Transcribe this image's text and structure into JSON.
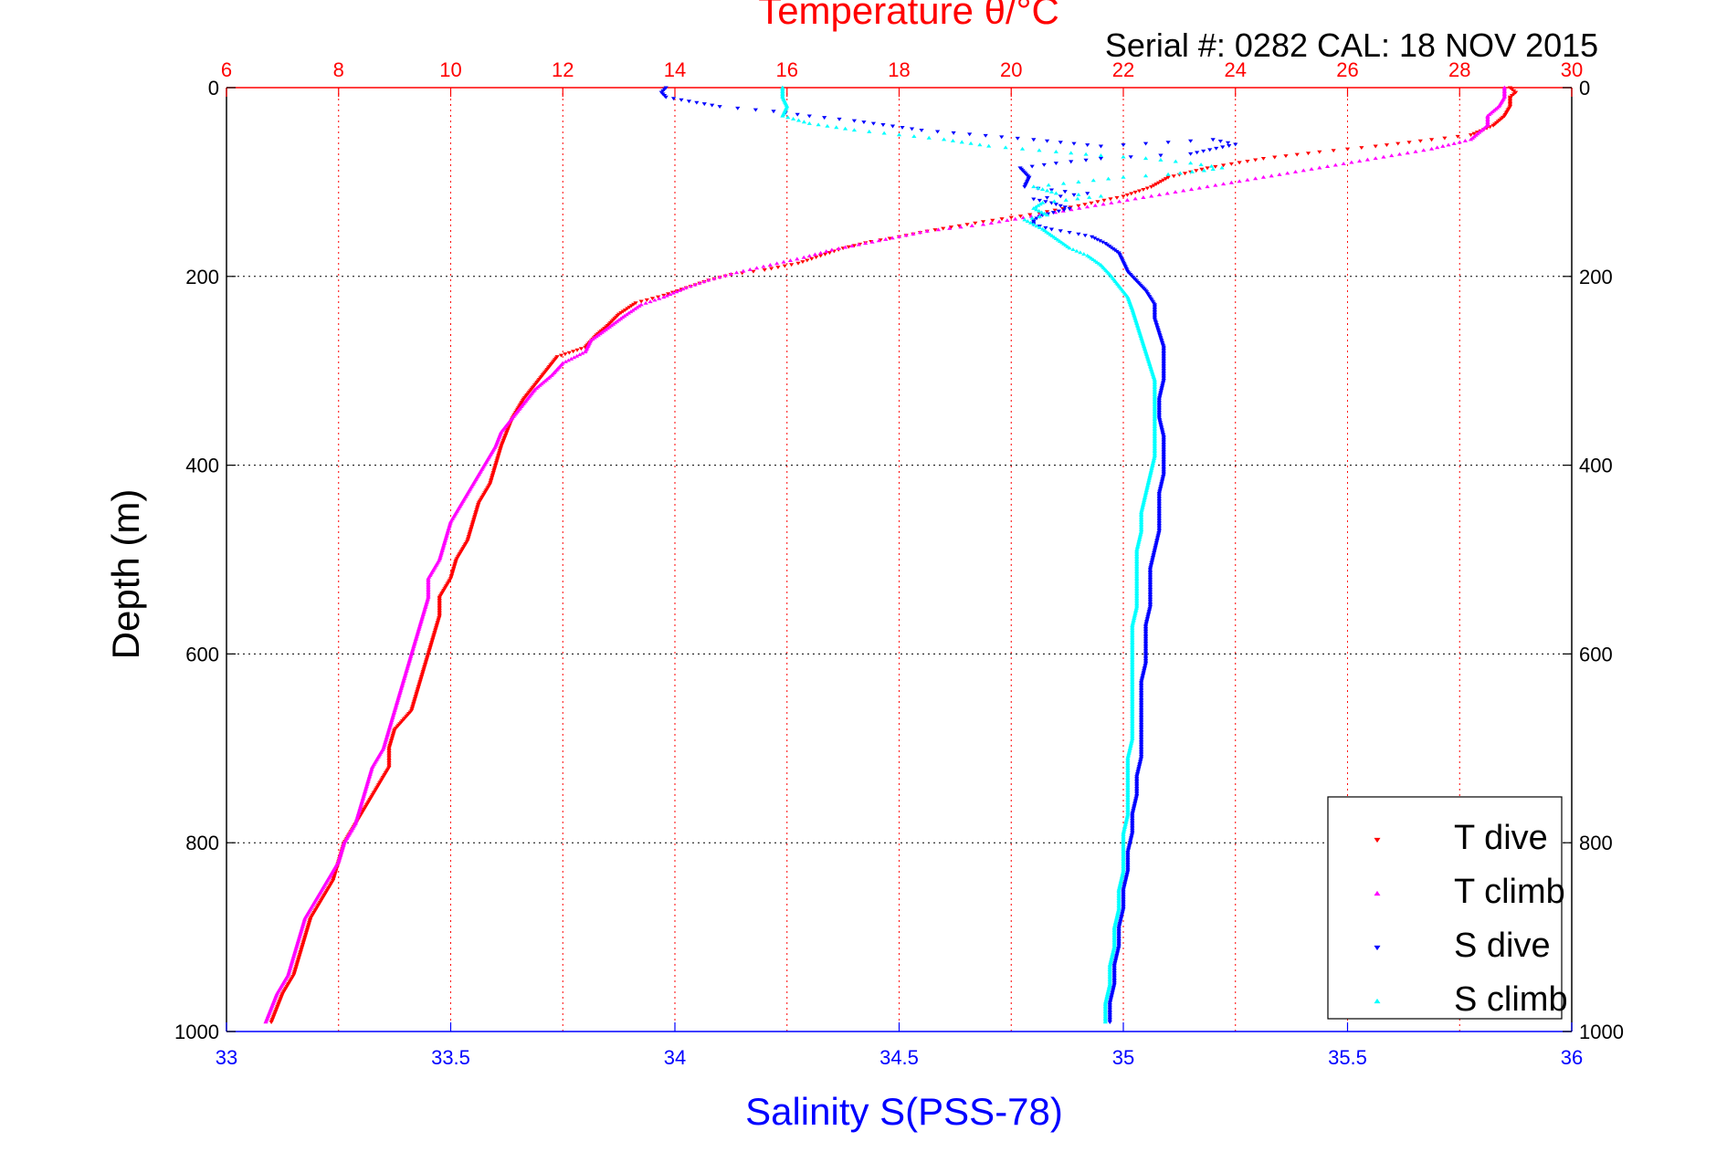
{
  "chart_data": {
    "type": "scatter",
    "title": "Temperature θ/°C",
    "subtitle": "Serial #: 0282  CAL: 18 NOV 2015",
    "xlabel_top": "Temperature θ/°C",
    "xlabel_bottom": "Salinity S(PSS-78)",
    "ylabel": "Depth (m)",
    "x_top": {
      "range": [
        6,
        30
      ],
      "ticks": [
        6,
        8,
        10,
        12,
        14,
        16,
        18,
        20,
        22,
        24,
        26,
        28,
        30
      ],
      "color": "#ff0000"
    },
    "x_bottom": {
      "range": [
        33,
        36
      ],
      "ticks": [
        "33",
        "33.5",
        "34",
        "34.5",
        "35",
        "35.5",
        "36"
      ],
      "color": "#0000ff"
    },
    "y": {
      "range": [
        0,
        1000
      ],
      "reversed": true,
      "ticks": [
        0,
        200,
        400,
        600,
        800,
        1000
      ]
    },
    "grid": true,
    "legend_position": "bottom-right",
    "series": [
      {
        "name": "T dive",
        "axis": "top",
        "color": "#ff0000",
        "marker": "triangle-down",
        "points": [
          [
            28.9,
            0
          ],
          [
            29.0,
            5
          ],
          [
            28.9,
            10
          ],
          [
            28.9,
            20
          ],
          [
            28.8,
            30
          ],
          [
            28.6,
            40
          ],
          [
            28.2,
            50
          ],
          [
            27.5,
            55
          ],
          [
            26.5,
            62
          ],
          [
            25.5,
            68
          ],
          [
            24.5,
            75
          ],
          [
            23.5,
            85
          ],
          [
            22.8,
            95
          ],
          [
            22.5,
            105
          ],
          [
            22.0,
            115
          ],
          [
            21.2,
            125
          ],
          [
            20.5,
            133
          ],
          [
            19.5,
            142
          ],
          [
            18.5,
            152
          ],
          [
            18.0,
            158
          ],
          [
            17.5,
            163
          ],
          [
            17.0,
            170
          ],
          [
            16.6,
            178
          ],
          [
            16.2,
            186
          ],
          [
            15.6,
            193
          ],
          [
            15.0,
            198
          ],
          [
            14.6,
            204
          ],
          [
            14.2,
            212
          ],
          [
            13.8,
            220
          ],
          [
            13.3,
            228
          ],
          [
            13.0,
            240
          ],
          [
            12.8,
            252
          ],
          [
            12.6,
            262
          ],
          [
            12.4,
            275
          ],
          [
            11.9,
            285
          ],
          [
            11.7,
            300
          ],
          [
            11.5,
            315
          ],
          [
            11.3,
            330
          ],
          [
            11.1,
            350
          ],
          [
            11.0,
            365
          ],
          [
            10.9,
            380
          ],
          [
            10.8,
            400
          ],
          [
            10.7,
            420
          ],
          [
            10.5,
            440
          ],
          [
            10.4,
            460
          ],
          [
            10.3,
            480
          ],
          [
            10.1,
            500
          ],
          [
            10.0,
            520
          ],
          [
            9.8,
            540
          ],
          [
            9.8,
            560
          ],
          [
            9.7,
            580
          ],
          [
            9.6,
            600
          ],
          [
            9.5,
            620
          ],
          [
            9.4,
            640
          ],
          [
            9.3,
            660
          ],
          [
            9.0,
            680
          ],
          [
            8.9,
            700
          ],
          [
            8.9,
            720
          ],
          [
            8.7,
            740
          ],
          [
            8.5,
            760
          ],
          [
            8.3,
            780
          ],
          [
            8.1,
            800
          ],
          [
            8.0,
            820
          ],
          [
            7.9,
            840
          ],
          [
            7.7,
            860
          ],
          [
            7.5,
            880
          ],
          [
            7.4,
            900
          ],
          [
            7.3,
            920
          ],
          [
            7.2,
            940
          ],
          [
            7.0,
            960
          ],
          [
            6.9,
            975
          ],
          [
            6.8,
            990
          ]
        ]
      },
      {
        "name": "T climb",
        "axis": "top",
        "color": "#ff00ff",
        "marker": "triangle-up",
        "points": [
          [
            28.8,
            0
          ],
          [
            28.8,
            10
          ],
          [
            28.7,
            20
          ],
          [
            28.5,
            30
          ],
          [
            28.5,
            40
          ],
          [
            28.2,
            55
          ],
          [
            27.5,
            65
          ],
          [
            26.5,
            75
          ],
          [
            25.5,
            85
          ],
          [
            24.5,
            95
          ],
          [
            23.5,
            105
          ],
          [
            22.5,
            115
          ],
          [
            21.5,
            125
          ],
          [
            20.5,
            135
          ],
          [
            19.5,
            145
          ],
          [
            18.5,
            152
          ],
          [
            18.0,
            158
          ],
          [
            17.4,
            165
          ],
          [
            16.8,
            172
          ],
          [
            16.3,
            180
          ],
          [
            15.7,
            188
          ],
          [
            15.1,
            196
          ],
          [
            14.6,
            204
          ],
          [
            14.2,
            212
          ],
          [
            13.8,
            222
          ],
          [
            13.4,
            230
          ],
          [
            13.1,
            242
          ],
          [
            12.8,
            255
          ],
          [
            12.5,
            268
          ],
          [
            12.4,
            280
          ],
          [
            12.0,
            292
          ],
          [
            11.8,
            305
          ],
          [
            11.5,
            320
          ],
          [
            11.3,
            335
          ],
          [
            11.1,
            350
          ],
          [
            10.9,
            365
          ],
          [
            10.8,
            380
          ],
          [
            10.6,
            400
          ],
          [
            10.4,
            420
          ],
          [
            10.2,
            440
          ],
          [
            10.0,
            460
          ],
          [
            9.9,
            480
          ],
          [
            9.8,
            500
          ],
          [
            9.6,
            520
          ],
          [
            9.6,
            540
          ],
          [
            9.5,
            560
          ],
          [
            9.4,
            580
          ],
          [
            9.3,
            600
          ],
          [
            9.2,
            620
          ],
          [
            9.1,
            640
          ],
          [
            9.0,
            660
          ],
          [
            8.9,
            680
          ],
          [
            8.8,
            700
          ],
          [
            8.6,
            720
          ],
          [
            8.5,
            740
          ],
          [
            8.4,
            760
          ],
          [
            8.3,
            780
          ],
          [
            8.1,
            800
          ],
          [
            8.0,
            820
          ],
          [
            7.8,
            840
          ],
          [
            7.6,
            860
          ],
          [
            7.4,
            880
          ],
          [
            7.3,
            900
          ],
          [
            7.2,
            920
          ],
          [
            7.1,
            940
          ],
          [
            6.9,
            960
          ],
          [
            6.8,
            975
          ],
          [
            6.7,
            990
          ]
        ]
      },
      {
        "name": "S dive",
        "axis": "bottom",
        "color": "#0000ff",
        "marker": "triangle-down",
        "points": [
          [
            33.98,
            0
          ],
          [
            33.97,
            5
          ],
          [
            33.98,
            10
          ],
          [
            34.1,
            20
          ],
          [
            34.22,
            25
          ],
          [
            34.3,
            30
          ],
          [
            34.4,
            35
          ],
          [
            34.55,
            45
          ],
          [
            34.8,
            55
          ],
          [
            34.95,
            62
          ],
          [
            35.2,
            55
          ],
          [
            35.25,
            60
          ],
          [
            35.15,
            70
          ],
          [
            34.95,
            75
          ],
          [
            34.85,
            80
          ],
          [
            34.77,
            85
          ],
          [
            34.79,
            95
          ],
          [
            34.78,
            105
          ],
          [
            34.87,
            110
          ],
          [
            34.92,
            112
          ],
          [
            34.8,
            118
          ],
          [
            34.84,
            122
          ],
          [
            34.88,
            128
          ],
          [
            34.82,
            135
          ],
          [
            34.8,
            140
          ],
          [
            34.8,
            145
          ],
          [
            34.84,
            150
          ],
          [
            34.9,
            155
          ],
          [
            34.93,
            158
          ],
          [
            34.96,
            165
          ],
          [
            34.99,
            175
          ],
          [
            35.0,
            185
          ],
          [
            35.01,
            195
          ],
          [
            35.03,
            205
          ],
          [
            35.05,
            215
          ],
          [
            35.07,
            230
          ],
          [
            35.07,
            245
          ],
          [
            35.08,
            260
          ],
          [
            35.09,
            275
          ],
          [
            35.09,
            290
          ],
          [
            35.09,
            310
          ],
          [
            35.08,
            330
          ],
          [
            35.08,
            350
          ],
          [
            35.09,
            370
          ],
          [
            35.09,
            390
          ],
          [
            35.09,
            410
          ],
          [
            35.08,
            430
          ],
          [
            35.08,
            450
          ],
          [
            35.08,
            470
          ],
          [
            35.07,
            490
          ],
          [
            35.06,
            510
          ],
          [
            35.06,
            530
          ],
          [
            35.06,
            550
          ],
          [
            35.05,
            570
          ],
          [
            35.05,
            590
          ],
          [
            35.05,
            610
          ],
          [
            35.04,
            630
          ],
          [
            35.04,
            650
          ],
          [
            35.04,
            670
          ],
          [
            35.04,
            690
          ],
          [
            35.04,
            710
          ],
          [
            35.03,
            730
          ],
          [
            35.03,
            750
          ],
          [
            35.02,
            770
          ],
          [
            35.02,
            790
          ],
          [
            35.01,
            810
          ],
          [
            35.01,
            830
          ],
          [
            35.0,
            850
          ],
          [
            35.0,
            870
          ],
          [
            34.99,
            890
          ],
          [
            34.99,
            910
          ],
          [
            34.98,
            930
          ],
          [
            34.98,
            950
          ],
          [
            34.97,
            970
          ],
          [
            34.97,
            990
          ]
        ]
      },
      {
        "name": "S climb",
        "axis": "bottom",
        "color": "#00ffff",
        "marker": "triangle-up",
        "points": [
          [
            34.24,
            0
          ],
          [
            34.24,
            10
          ],
          [
            34.25,
            20
          ],
          [
            34.24,
            30
          ],
          [
            34.3,
            38
          ],
          [
            34.4,
            45
          ],
          [
            34.5,
            50
          ],
          [
            34.6,
            55
          ],
          [
            34.7,
            62
          ],
          [
            34.85,
            68
          ],
          [
            34.95,
            72
          ],
          [
            35.05,
            75
          ],
          [
            35.15,
            80
          ],
          [
            35.22,
            85
          ],
          [
            35.18,
            88
          ],
          [
            35.1,
            92
          ],
          [
            35.0,
            95
          ],
          [
            34.9,
            100
          ],
          [
            34.8,
            105
          ],
          [
            34.85,
            112
          ],
          [
            34.95,
            115
          ],
          [
            34.82,
            122
          ],
          [
            34.8,
            128
          ],
          [
            34.83,
            135
          ],
          [
            34.78,
            140
          ],
          [
            34.8,
            145
          ],
          [
            34.82,
            150
          ],
          [
            34.85,
            160
          ],
          [
            34.88,
            170
          ],
          [
            34.92,
            178
          ],
          [
            34.95,
            188
          ],
          [
            34.97,
            198
          ],
          [
            34.99,
            210
          ],
          [
            35.01,
            222
          ],
          [
            35.02,
            235
          ],
          [
            35.03,
            250
          ],
          [
            35.04,
            265
          ],
          [
            35.05,
            280
          ],
          [
            35.06,
            295
          ],
          [
            35.07,
            310
          ],
          [
            35.07,
            330
          ],
          [
            35.07,
            350
          ],
          [
            35.07,
            370
          ],
          [
            35.07,
            390
          ],
          [
            35.06,
            410
          ],
          [
            35.05,
            430
          ],
          [
            35.04,
            450
          ],
          [
            35.04,
            470
          ],
          [
            35.03,
            490
          ],
          [
            35.03,
            510
          ],
          [
            35.03,
            530
          ],
          [
            35.03,
            550
          ],
          [
            35.02,
            570
          ],
          [
            35.02,
            590
          ],
          [
            35.02,
            610
          ],
          [
            35.02,
            630
          ],
          [
            35.02,
            650
          ],
          [
            35.02,
            670
          ],
          [
            35.02,
            690
          ],
          [
            35.01,
            710
          ],
          [
            35.01,
            730
          ],
          [
            35.01,
            750
          ],
          [
            35.01,
            770
          ],
          [
            35.0,
            790
          ],
          [
            35.0,
            810
          ],
          [
            35.0,
            830
          ],
          [
            34.99,
            850
          ],
          [
            34.99,
            870
          ],
          [
            34.98,
            890
          ],
          [
            34.98,
            910
          ],
          [
            34.97,
            930
          ],
          [
            34.97,
            950
          ],
          [
            34.96,
            970
          ],
          [
            34.96,
            990
          ]
        ]
      }
    ]
  }
}
